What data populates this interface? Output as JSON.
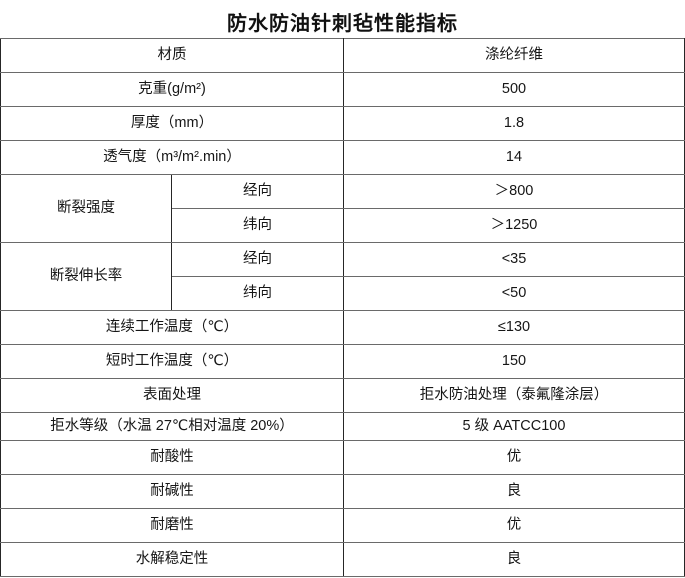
{
  "title": "防水防油针刺毡性能指标",
  "colors": {
    "background": "#ffffff",
    "text": "#161616",
    "border_horizontal": "#6a6a6a",
    "border_vertical": "#262626"
  },
  "table": {
    "rows": [
      {
        "label": "材质",
        "value": "涤纶纤维"
      },
      {
        "label": "克重(g/m²)",
        "value": "500"
      },
      {
        "label": "厚度（mm）",
        "value": "1.8"
      },
      {
        "label": "透气度（m³/m².min）",
        "value": "14"
      },
      {
        "group": "断裂强度",
        "dir": "经向",
        "value": "＞800"
      },
      {
        "dir": "纬向",
        "value": "＞1250"
      },
      {
        "group": "断裂伸长率",
        "dir": "经向",
        "value": "<35"
      },
      {
        "dir": "纬向",
        "value": "<50"
      },
      {
        "label": "连续工作温度（℃）",
        "value": "≤130"
      },
      {
        "label": "短时工作温度（℃）",
        "value": "150"
      },
      {
        "label": "表面处理",
        "value": "拒水防油处理（泰氟隆涂层）"
      },
      {
        "label": "拒水等级（水温 27℃相对温度 20%）",
        "value": "5 级 AATCC100"
      },
      {
        "label": "耐酸性",
        "value": "优"
      },
      {
        "label": "耐碱性",
        "value": "良"
      },
      {
        "label": "耐磨性",
        "value": "优"
      },
      {
        "label": "水解稳定性",
        "value": "良"
      }
    ]
  }
}
